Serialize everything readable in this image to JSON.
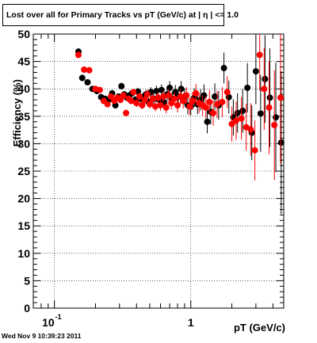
{
  "chart_data": {
    "type": "scatter",
    "title": "Lost over all for Primary Tracks vs pT (GeV/c) at |  η | <= 1.0",
    "xlabel": "pT (GeV/c)",
    "ylabel": "Efficiency (%)",
    "x_scale": "log",
    "xlim": [
      0.07,
      4.8
    ],
    "ylim": [
      0,
      50
    ],
    "y_ticks": [
      0,
      5,
      10,
      15,
      20,
      25,
      30,
      35,
      40,
      45,
      50
    ],
    "x_tick_labels": [
      {
        "value": 0.1,
        "base": "10",
        "exponent": "-1"
      },
      {
        "value": 1,
        "base": "1",
        "exponent": ""
      }
    ],
    "grid": true,
    "timestamp": "Wed Nov  9 10:39:23 2011",
    "series": [
      {
        "color": "#000000",
        "points": [
          [
            0.15,
            46.8,
            0.6
          ],
          [
            0.16,
            42.0,
            0.6
          ],
          [
            0.175,
            41.2,
            0.5
          ],
          [
            0.19,
            40.0,
            0.5
          ],
          [
            0.205,
            39.6,
            0.5
          ],
          [
            0.22,
            38.5,
            0.5
          ],
          [
            0.235,
            38.2,
            0.5
          ],
          [
            0.25,
            38.0,
            0.5
          ],
          [
            0.265,
            39.2,
            0.5
          ],
          [
            0.28,
            37.0,
            0.6
          ],
          [
            0.295,
            38.6,
            0.5
          ],
          [
            0.31,
            40.5,
            0.6
          ],
          [
            0.325,
            39.0,
            0.6
          ],
          [
            0.34,
            38.4,
            0.6
          ],
          [
            0.355,
            38.8,
            0.6
          ],
          [
            0.37,
            39.2,
            0.6
          ],
          [
            0.39,
            38.0,
            0.7
          ],
          [
            0.41,
            39.5,
            0.7
          ],
          [
            0.43,
            38.2,
            0.7
          ],
          [
            0.45,
            38.6,
            0.8
          ],
          [
            0.47,
            39.0,
            0.8
          ],
          [
            0.49,
            37.6,
            0.8
          ],
          [
            0.51,
            39.4,
            0.9
          ],
          [
            0.535,
            38.2,
            0.9
          ],
          [
            0.56,
            39.6,
            1.0
          ],
          [
            0.585,
            38.0,
            1.0
          ],
          [
            0.61,
            39.8,
            1.0
          ],
          [
            0.64,
            37.5,
            1.1
          ],
          [
            0.67,
            39.0,
            1.1
          ],
          [
            0.7,
            40.2,
            1.2
          ],
          [
            0.73,
            38.2,
            1.2
          ],
          [
            0.77,
            39.4,
            1.3
          ],
          [
            0.81,
            38.6,
            1.3
          ],
          [
            0.85,
            40.0,
            1.4
          ],
          [
            0.9,
            38.6,
            1.5
          ],
          [
            0.95,
            37.0,
            1.6
          ],
          [
            1.0,
            36.8,
            1.6
          ],
          [
            1.06,
            38.4,
            1.7
          ],
          [
            1.12,
            37.2,
            1.8
          ],
          [
            1.18,
            38.0,
            1.9
          ],
          [
            1.25,
            38.8,
            2.0
          ],
          [
            1.32,
            34.0,
            2.1
          ],
          [
            1.4,
            35.8,
            2.3
          ],
          [
            1.5,
            38.6,
            2.4
          ],
          [
            1.6,
            37.0,
            2.6
          ],
          [
            1.75,
            43.8,
            2.8
          ],
          [
            1.9,
            38.5,
            3.0
          ],
          [
            2.05,
            34.8,
            3.3
          ],
          [
            2.2,
            35.6,
            3.6
          ],
          [
            2.4,
            36.0,
            4.0
          ],
          [
            2.6,
            40.2,
            4.5
          ],
          [
            2.8,
            32.0,
            5.0
          ],
          [
            3.0,
            43.2,
            6.0
          ],
          [
            3.25,
            35.5,
            7.0
          ],
          [
            3.5,
            41.8,
            8.0
          ],
          [
            3.8,
            38.4,
            9.0
          ],
          [
            4.2,
            34.8,
            10.0
          ],
          [
            4.6,
            30.2,
            13.0
          ]
        ]
      },
      {
        "color": "#ff0000",
        "points": [
          [
            0.15,
            46.2,
            0.6
          ],
          [
            0.165,
            43.5,
            0.6
          ],
          [
            0.18,
            43.4,
            0.5
          ],
          [
            0.2,
            40.0,
            0.5
          ],
          [
            0.215,
            39.8,
            0.5
          ],
          [
            0.23,
            37.8,
            0.5
          ],
          [
            0.245,
            37.2,
            0.5
          ],
          [
            0.26,
            38.6,
            0.5
          ],
          [
            0.275,
            37.8,
            0.5
          ],
          [
            0.29,
            38.4,
            0.5
          ],
          [
            0.305,
            38.0,
            0.6
          ],
          [
            0.32,
            38.8,
            0.6
          ],
          [
            0.335,
            35.6,
            0.6
          ],
          [
            0.35,
            38.2,
            0.6
          ],
          [
            0.365,
            37.8,
            0.6
          ],
          [
            0.38,
            39.4,
            0.6
          ],
          [
            0.4,
            37.4,
            0.7
          ],
          [
            0.42,
            38.6,
            0.7
          ],
          [
            0.44,
            37.0,
            0.7
          ],
          [
            0.46,
            38.0,
            0.8
          ],
          [
            0.48,
            39.0,
            0.8
          ],
          [
            0.5,
            37.2,
            0.8
          ],
          [
            0.525,
            38.2,
            0.9
          ],
          [
            0.55,
            36.8,
            0.9
          ],
          [
            0.575,
            38.4,
            1.0
          ],
          [
            0.6,
            37.0,
            1.0
          ],
          [
            0.63,
            38.6,
            1.0
          ],
          [
            0.66,
            36.6,
            1.1
          ],
          [
            0.69,
            38.8,
            1.1
          ],
          [
            0.72,
            37.4,
            1.2
          ],
          [
            0.76,
            38.2,
            1.2
          ],
          [
            0.8,
            37.0,
            1.3
          ],
          [
            0.84,
            38.6,
            1.4
          ],
          [
            0.88,
            37.8,
            1.4
          ],
          [
            0.93,
            38.8,
            1.5
          ],
          [
            0.98,
            36.8,
            1.6
          ],
          [
            1.03,
            37.8,
            1.6
          ],
          [
            1.09,
            39.2,
            1.7
          ],
          [
            1.15,
            37.4,
            1.8
          ],
          [
            1.22,
            37.0,
            1.9
          ],
          [
            1.29,
            36.6,
            2.0
          ],
          [
            1.37,
            37.6,
            2.2
          ],
          [
            1.46,
            35.6,
            2.3
          ],
          [
            1.56,
            37.2,
            2.5
          ],
          [
            1.7,
            37.6,
            2.7
          ],
          [
            1.85,
            39.4,
            2.9
          ],
          [
            2.0,
            33.6,
            3.2
          ],
          [
            2.15,
            34.2,
            3.5
          ],
          [
            2.35,
            34.6,
            3.9
          ],
          [
            2.55,
            33.0,
            4.3
          ],
          [
            2.75,
            32.6,
            4.8
          ],
          [
            2.95,
            28.8,
            5.5
          ],
          [
            3.2,
            46.2,
            6.5
          ],
          [
            3.45,
            40.0,
            7.5
          ],
          [
            3.75,
            36.6,
            8.5
          ],
          [
            4.1,
            33.4,
            10.0
          ],
          [
            4.55,
            38.4,
            12.0
          ]
        ]
      }
    ]
  }
}
